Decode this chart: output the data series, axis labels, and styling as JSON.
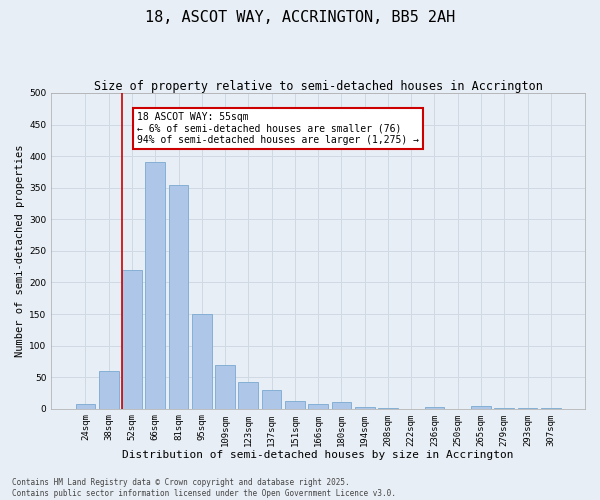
{
  "title": "18, ASCOT WAY, ACCRINGTON, BB5 2AH",
  "subtitle": "Size of property relative to semi-detached houses in Accrington",
  "xlabel": "Distribution of semi-detached houses by size in Accrington",
  "ylabel": "Number of semi-detached properties",
  "categories": [
    "24sqm",
    "38sqm",
    "52sqm",
    "66sqm",
    "81sqm",
    "95sqm",
    "109sqm",
    "123sqm",
    "137sqm",
    "151sqm",
    "166sqm",
    "180sqm",
    "194sqm",
    "208sqm",
    "222sqm",
    "236sqm",
    "250sqm",
    "265sqm",
    "279sqm",
    "293sqm",
    "307sqm"
  ],
  "values": [
    8,
    60,
    220,
    390,
    355,
    150,
    70,
    43,
    30,
    13,
    8,
    10,
    2,
    1,
    0,
    3,
    0,
    5,
    1,
    1,
    1
  ],
  "bar_color": "#aec6e8",
  "bar_edge_color": "#7aaad0",
  "grid_color": "#d0d8e4",
  "background_color": "#e8eef5",
  "red_line_x": 1.57,
  "annotation_text": "18 ASCOT WAY: 55sqm\n← 6% of semi-detached houses are smaller (76)\n94% of semi-detached houses are larger (1,275) →",
  "annotation_box_color": "#ffffff",
  "annotation_box_edge_color": "#cc0000",
  "red_line_color": "#cc0000",
  "ylim": [
    0,
    500
  ],
  "yticks": [
    0,
    50,
    100,
    150,
    200,
    250,
    300,
    350,
    400,
    450,
    500
  ],
  "footer": "Contains HM Land Registry data © Crown copyright and database right 2025.\nContains public sector information licensed under the Open Government Licence v3.0.",
  "title_fontsize": 11,
  "subtitle_fontsize": 8.5,
  "xlabel_fontsize": 8,
  "ylabel_fontsize": 7.5,
  "tick_fontsize": 6.5,
  "footer_fontsize": 5.5,
  "annot_fontsize": 7
}
